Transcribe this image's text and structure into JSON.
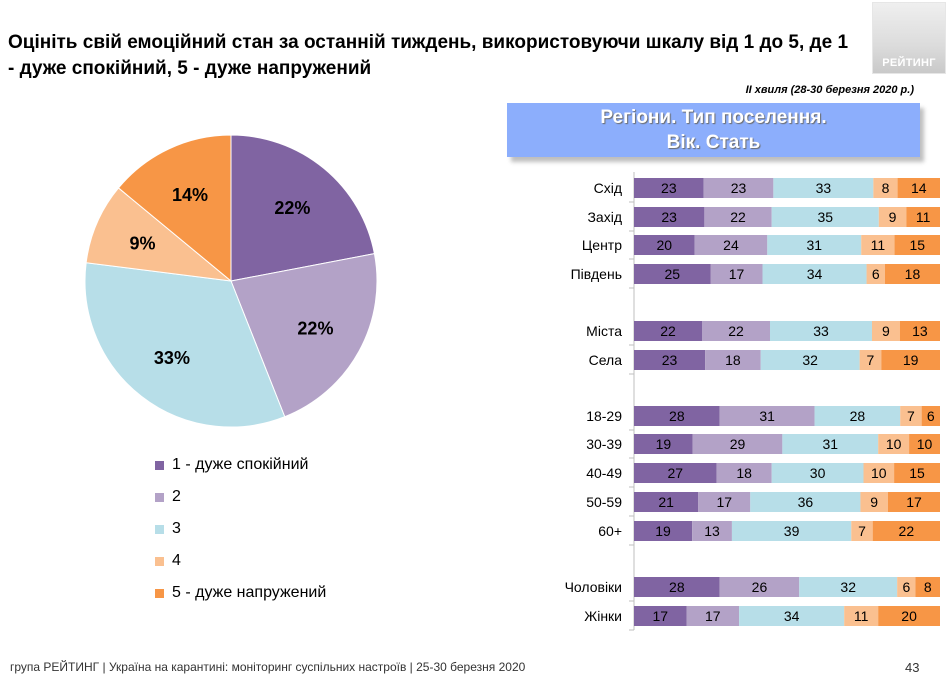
{
  "header": {
    "title": "Оцініть свій емоційний стан за останній тиждень, використовуючи шкалу від 1 до 5, де 1 - дуже спокійний, 5 - дуже напружений",
    "logo_text": "РЕЙТИНГ",
    "wave": "ІІ хвиля (28-30 березня 2020 р.)",
    "banner_line1": "Регіони. Тип поселення.",
    "banner_line2": "Вік. Стать"
  },
  "legend": {
    "items": [
      {
        "label": "1 - дуже спокійний",
        "color": "#8064a2"
      },
      {
        "label": "2",
        "color": "#b3a2c7"
      },
      {
        "label": "3",
        "color": "#b7dee8"
      },
      {
        "label": "4",
        "color": "#fac090"
      },
      {
        "label": "5 - дуже напружений",
        "color": "#f79646"
      }
    ]
  },
  "chart_data": [
    {
      "type": "pie",
      "categories": [
        "1 - дуже спокійний",
        "2",
        "3",
        "4",
        "5 - дуже напружений"
      ],
      "values": [
        22,
        22,
        33,
        9,
        14
      ],
      "data_labels": [
        "22%",
        "22%",
        "33%",
        "9%",
        "14%"
      ],
      "colors": [
        "#8064a2",
        "#b3a2c7",
        "#b7dee8",
        "#fac090",
        "#f79646"
      ],
      "legend_position": "bottom-left"
    },
    {
      "type": "bar",
      "orientation": "horizontal",
      "stacked": true,
      "normalized": true,
      "categories": [
        "Схід",
        "Захід",
        "Центр",
        "Південь",
        "Міста",
        "Села",
        "18-29",
        "30-39",
        "40-49",
        "50-59",
        "60+",
        "Чоловіки",
        "Жінки"
      ],
      "groups": [
        [
          "Схід",
          "Захід",
          "Центр",
          "Південь"
        ],
        [
          "Міста",
          "Села"
        ],
        [
          "18-29",
          "30-39",
          "40-49",
          "50-59",
          "60+"
        ],
        [
          "Чоловіки",
          "Жінки"
        ]
      ],
      "series": [
        {
          "name": "1 - дуже спокійний",
          "color": "#8064a2",
          "values": [
            23,
            23,
            20,
            25,
            22,
            23,
            28,
            19,
            27,
            21,
            19,
            28,
            17
          ]
        },
        {
          "name": "2",
          "color": "#b3a2c7",
          "values": [
            23,
            22,
            24,
            17,
            22,
            18,
            31,
            29,
            18,
            17,
            13,
            26,
            17
          ]
        },
        {
          "name": "3",
          "color": "#b7dee8",
          "values": [
            33,
            35,
            31,
            34,
            33,
            32,
            28,
            31,
            30,
            36,
            39,
            32,
            34
          ]
        },
        {
          "name": "4",
          "color": "#fac090",
          "values": [
            8,
            9,
            11,
            6,
            9,
            7,
            7,
            10,
            10,
            9,
            7,
            6,
            11
          ]
        },
        {
          "name": "5 - дуже напружений",
          "color": "#f79646",
          "values": [
            14,
            11,
            15,
            18,
            13,
            19,
            6,
            10,
            15,
            17,
            22,
            8,
            20
          ]
        }
      ]
    }
  ],
  "footer": {
    "text": "група РЕЙТИНГ  |  Україна на карантині: моніторинг суспільних настроїв  |  25-30 березня 2020",
    "page": "43"
  }
}
